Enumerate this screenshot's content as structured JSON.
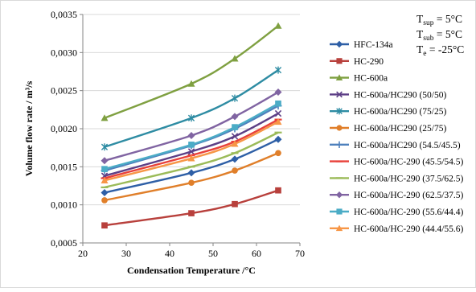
{
  "chart_data": {
    "type": "line",
    "xlabel": "Condensation Temperature /°C",
    "ylabel": "Volume flow rate / m³/s",
    "xlim": [
      20,
      70
    ],
    "ylim": [
      0.0005,
      0.0035
    ],
    "xticks": [
      "20",
      "30",
      "40",
      "50",
      "60",
      "70"
    ],
    "yticks": [
      "0,0005",
      "0,0010",
      "0,0015",
      "0,0020",
      "0,0025",
      "0,0030",
      "0,0035"
    ],
    "grid": "horizontal",
    "legend_position": "right",
    "x": [
      25,
      45,
      55,
      65
    ],
    "conditions": [
      {
        "main": "T",
        "sub": "sup",
        "value": " = 5°C"
      },
      {
        "main": "T",
        "sub": "sub",
        "value": " = 5°C"
      },
      {
        "main": "T",
        "sub": "e",
        "value": " = -25°C"
      }
    ],
    "series": [
      {
        "name": "HFC-134a",
        "color": "#2E5FA6",
        "marker": "diamond",
        "values": [
          0.00116,
          0.00142,
          0.0016,
          0.00186
        ]
      },
      {
        "name": "HC-290",
        "color": "#B8403C",
        "marker": "square",
        "values": [
          0.00073,
          0.00089,
          0.00101,
          0.00119
        ]
      },
      {
        "name": "HC-600a",
        "color": "#7FA041",
        "marker": "triangle",
        "values": [
          0.00214,
          0.00259,
          0.00292,
          0.00335
        ]
      },
      {
        "name": "HC-600a/HC290 (50/50)",
        "color": "#5D3F86",
        "marker": "x",
        "values": [
          0.00138,
          0.0017,
          0.0019,
          0.0022
        ]
      },
      {
        "name": "HC-600a/HC290 (75/25)",
        "color": "#2E8CA3",
        "marker": "star",
        "values": [
          0.00176,
          0.00214,
          0.0024,
          0.00277
        ]
      },
      {
        "name": "HC-600a/HC290 (25/75)",
        "color": "#E07F2A",
        "marker": "circle",
        "values": [
          0.00106,
          0.00129,
          0.00145,
          0.00168
        ]
      },
      {
        "name": "HC-600a/HC290 (54.5/45.5)",
        "color": "#4F81BD",
        "marker": "plus",
        "values": [
          0.00145,
          0.00178,
          0.002,
          0.0023
        ]
      },
      {
        "name": "HC-600a/HC-290 (45.5/54.5)",
        "color": "#E8413A",
        "marker": "dash",
        "values": [
          0.00135,
          0.00165,
          0.00183,
          0.00212
        ]
      },
      {
        "name": "HC-600a/HC-290 (37.5/62.5)",
        "color": "#9BBB59",
        "marker": "dash",
        "values": [
          0.00123,
          0.0015,
          0.00168,
          0.00195
        ]
      },
      {
        "name": "HC-600a/HC-290 (62.5/37.5)",
        "color": "#8064A2",
        "marker": "diamond",
        "values": [
          0.00158,
          0.00191,
          0.00216,
          0.00248
        ]
      },
      {
        "name": "HC-600a/HC-290 (55.6/44.4)",
        "color": "#4BACC6",
        "marker": "square",
        "values": [
          0.00147,
          0.00179,
          0.00202,
          0.00233
        ]
      },
      {
        "name": "HC-600a/HC-290 (44.4/55.6)",
        "color": "#F79646",
        "marker": "triangle",
        "values": [
          0.00132,
          0.00161,
          0.0018,
          0.00209
        ]
      }
    ]
  }
}
